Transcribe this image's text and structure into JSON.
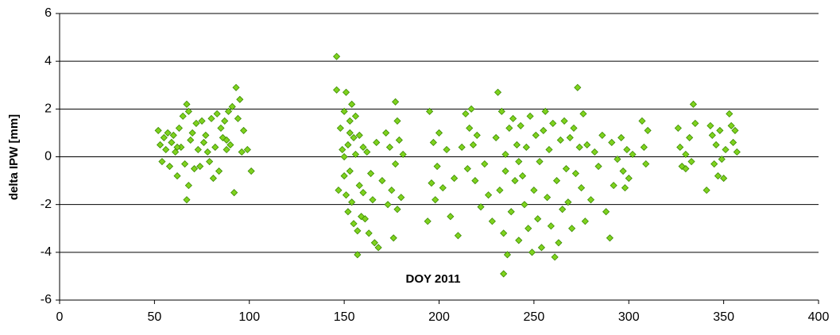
{
  "chart_data": {
    "type": "scatter",
    "y_label": "delta IPW [mm]",
    "x_label": "DOY 2011",
    "color": "#7fd21e",
    "edge_color": "#3a8a00",
    "grid": true,
    "xlim": [
      0,
      400
    ],
    "xticks": [
      0,
      50,
      100,
      150,
      200,
      250,
      300,
      350,
      400
    ],
    "ylim": [
      -6,
      6
    ],
    "yticks": [
      -6,
      -4,
      -2,
      0,
      2,
      4,
      6
    ],
    "x": [
      52,
      53,
      54,
      55,
      56,
      57,
      58,
      59,
      60,
      61,
      62,
      63,
      64,
      65,
      66,
      67,
      67,
      68,
      68,
      69,
      70,
      71,
      72,
      73,
      74,
      75,
      76,
      77,
      78,
      79,
      80,
      81,
      82,
      83,
      84,
      85,
      86,
      87,
      88,
      89,
      90,
      91,
      92,
      93,
      94,
      95,
      96,
      97,
      99,
      101,
      146,
      146,
      147,
      148,
      149,
      150,
      150,
      151,
      151,
      152,
      152,
      153,
      153,
      154,
      154,
      155,
      155,
      156,
      156,
      157,
      157,
      158,
      158,
      159,
      160,
      160,
      161,
      162,
      163,
      164,
      165,
      166,
      167,
      168,
      170,
      172,
      173,
      174,
      175,
      176,
      177,
      177,
      178,
      178,
      179,
      180,
      181,
      194,
      195,
      196,
      197,
      198,
      199,
      200,
      202,
      204,
      206,
      208,
      210,
      212,
      214,
      215,
      216,
      217,
      218,
      219,
      220,
      222,
      224,
      226,
      228,
      230,
      231,
      232,
      233,
      234,
      234,
      235,
      236,
      237,
      238,
      239,
      240,
      241,
      242,
      243,
      244,
      245,
      246,
      247,
      248,
      249,
      250,
      251,
      252,
      253,
      254,
      255,
      256,
      257,
      258,
      259,
      260,
      261,
      262,
      263,
      264,
      265,
      266,
      267,
      268,
      269,
      270,
      271,
      272,
      273,
      274,
      275,
      276,
      277,
      278,
      280,
      282,
      284,
      286,
      288,
      290,
      291,
      292,
      294,
      296,
      297,
      298,
      299,
      300,
      302,
      307,
      308,
      309,
      310,
      326,
      327,
      328,
      330,
      332,
      333,
      334,
      335,
      341,
      343,
      344,
      345,
      346,
      347,
      348,
      349,
      350,
      351,
      353,
      354,
      355,
      356,
      357,
      62,
      88,
      150,
      153,
      235,
      242,
      330
    ],
    "values": [
      1.1,
      0.5,
      -0.2,
      0.8,
      0.3,
      1.0,
      -0.4,
      0.6,
      0.9,
      0.2,
      -0.8,
      1.2,
      0.4,
      1.7,
      -0.3,
      2.2,
      -1.8,
      1.9,
      -1.2,
      0.7,
      1.0,
      -0.5,
      1.4,
      0.3,
      -0.4,
      1.5,
      0.6,
      0.9,
      0.2,
      -0.2,
      1.6,
      -0.9,
      0.4,
      1.8,
      -0.6,
      1.2,
      0.8,
      1.5,
      0.3,
      1.9,
      0.5,
      2.1,
      -1.5,
      2.9,
      1.6,
      2.4,
      0.2,
      1.1,
      0.3,
      -0.6,
      4.2,
      2.8,
      -1.4,
      1.2,
      0.3,
      -0.8,
      1.9,
      -1.6,
      2.7,
      0.5,
      -2.3,
      1.5,
      -0.6,
      2.2,
      -1.9,
      0.8,
      -2.8,
      0.1,
      1.7,
      -3.1,
      -4.1,
      0.9,
      -1.2,
      -2.5,
      0.4,
      -1.5,
      -2.6,
      0.2,
      -3.2,
      -0.7,
      -1.8,
      -3.6,
      0.6,
      -3.8,
      -1.0,
      1.0,
      -2.0,
      0.4,
      -1.4,
      -3.4,
      2.3,
      -0.3,
      1.5,
      -2.2,
      0.7,
      -1.7,
      0.1,
      -2.7,
      1.9,
      -1.1,
      0.6,
      -1.8,
      -0.4,
      1.0,
      -1.3,
      0.3,
      -2.5,
      -0.9,
      -3.3,
      0.4,
      1.8,
      -0.5,
      1.2,
      2.0,
      0.5,
      -1.0,
      0.9,
      -2.1,
      -0.3,
      -1.6,
      -2.7,
      0.8,
      2.7,
      -1.4,
      1.9,
      -3.2,
      -4.9,
      -0.6,
      -4.1,
      1.2,
      -2.3,
      1.6,
      -1.0,
      0.5,
      -3.5,
      1.3,
      -0.8,
      -2.0,
      0.4,
      -3.0,
      1.7,
      -4.0,
      -1.4,
      0.9,
      -2.6,
      -0.2,
      -3.8,
      1.1,
      1.9,
      -1.7,
      0.3,
      -2.9,
      1.4,
      -4.2,
      -1.0,
      -3.6,
      0.7,
      -2.2,
      1.5,
      -0.5,
      -1.9,
      0.8,
      -3.0,
      1.2,
      -0.7,
      2.9,
      0.4,
      -1.3,
      1.8,
      -2.7,
      0.5,
      -1.8,
      0.2,
      -0.4,
      0.9,
      -2.3,
      -3.4,
      0.6,
      -1.2,
      -0.1,
      0.8,
      -0.6,
      -1.3,
      0.3,
      -0.9,
      0.1,
      1.5,
      0.4,
      -0.3,
      1.1,
      1.2,
      0.4,
      -0.4,
      0.1,
      0.8,
      -0.2,
      2.2,
      1.4,
      -1.4,
      1.3,
      0.9,
      -0.3,
      0.5,
      -0.8,
      1.1,
      -0.1,
      -0.9,
      0.3,
      1.8,
      1.3,
      0.6,
      1.1,
      0.2,
      0.4,
      0.7,
      0.0,
      1.0,
      0.1,
      -0.2,
      -0.5
    ]
  }
}
